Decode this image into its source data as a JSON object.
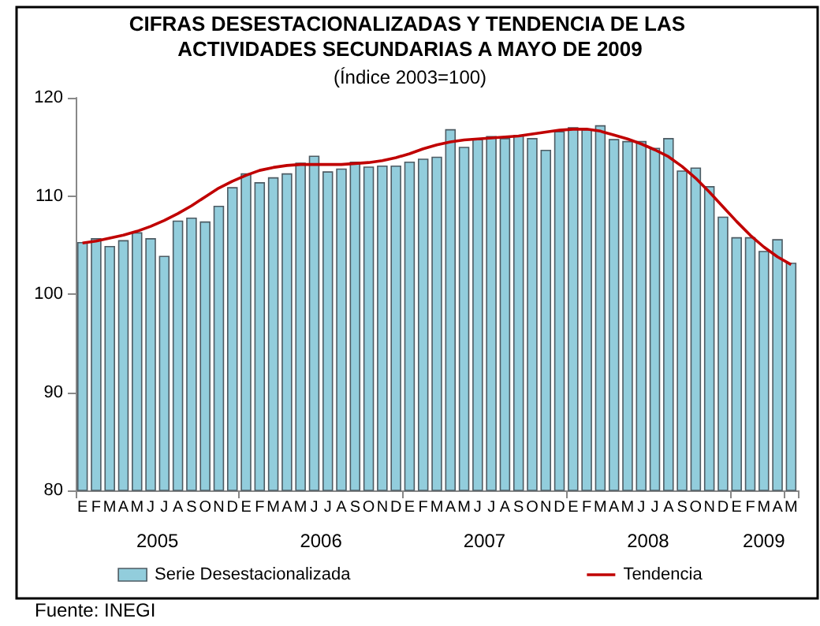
{
  "chart_data": {
    "type": "bar",
    "title": "CIFRAS DESESTACIONALIZADAS Y TENDENCIA DE LAS ACTIVIDADES SECUNDARIAS A MAYO DE 2009",
    "subtitle": "(Índice 2003=100)",
    "categories": [
      "E",
      "F",
      "M",
      "A",
      "M",
      "J",
      "J",
      "A",
      "S",
      "O",
      "N",
      "D",
      "E",
      "F",
      "M",
      "A",
      "M",
      "J",
      "J",
      "A",
      "S",
      "O",
      "N",
      "D",
      "E",
      "F",
      "M",
      "A",
      "M",
      "J",
      "J",
      "A",
      "S",
      "O",
      "N",
      "D",
      "E",
      "F",
      "M",
      "A",
      "M",
      "J",
      "J",
      "A",
      "S",
      "O",
      "N",
      "D",
      "E",
      "F",
      "M",
      "A",
      "M"
    ],
    "series": [
      {
        "name": "Serie Desestacionalizada",
        "color": "#92cddc",
        "values": [
          105.3,
          105.7,
          104.9,
          105.5,
          106.3,
          105.7,
          103.9,
          107.5,
          107.8,
          107.4,
          109.0,
          110.9,
          112.3,
          111.4,
          111.9,
          112.3,
          113.4,
          114.1,
          112.5,
          112.8,
          113.5,
          113.0,
          113.1,
          113.1,
          113.5,
          113.8,
          114.0,
          116.8,
          115.0,
          115.8,
          116.1,
          115.9,
          116.2,
          115.9,
          114.7,
          116.6,
          117.0,
          116.8,
          117.2,
          115.8,
          115.6,
          115.6,
          114.9,
          115.9,
          112.6,
          112.9,
          111.0,
          107.9,
          105.8,
          105.8,
          104.4,
          105.6,
          103.2
        ]
      },
      {
        "name": "Tendencia",
        "type": "line",
        "color": "#c00000",
        "values": [
          105.2,
          105.4,
          105.7,
          106.0,
          106.4,
          106.9,
          107.5,
          108.2,
          109.0,
          109.9,
          110.8,
          111.5,
          112.1,
          112.6,
          112.9,
          113.1,
          113.2,
          113.2,
          113.2,
          113.2,
          113.3,
          113.4,
          113.6,
          113.9,
          114.3,
          114.8,
          115.2,
          115.5,
          115.7,
          115.8,
          115.9,
          116.0,
          116.1,
          116.3,
          116.5,
          116.7,
          116.8,
          116.8,
          116.6,
          116.2,
          115.8,
          115.3,
          114.7,
          114.0,
          113.0,
          111.8,
          110.4,
          108.9,
          107.4,
          106.0,
          104.8,
          103.8,
          103.0
        ]
      }
    ],
    "ylim": [
      80,
      120
    ],
    "yticks": [
      80,
      90,
      100,
      110,
      120
    ],
    "grid": false,
    "legend": "bottom",
    "marker": "none",
    "line_style": "solid",
    "annotations": [
      "2005",
      "2006",
      "2007",
      "2008",
      "2009",
      "Fuente: INEGI"
    ]
  }
}
